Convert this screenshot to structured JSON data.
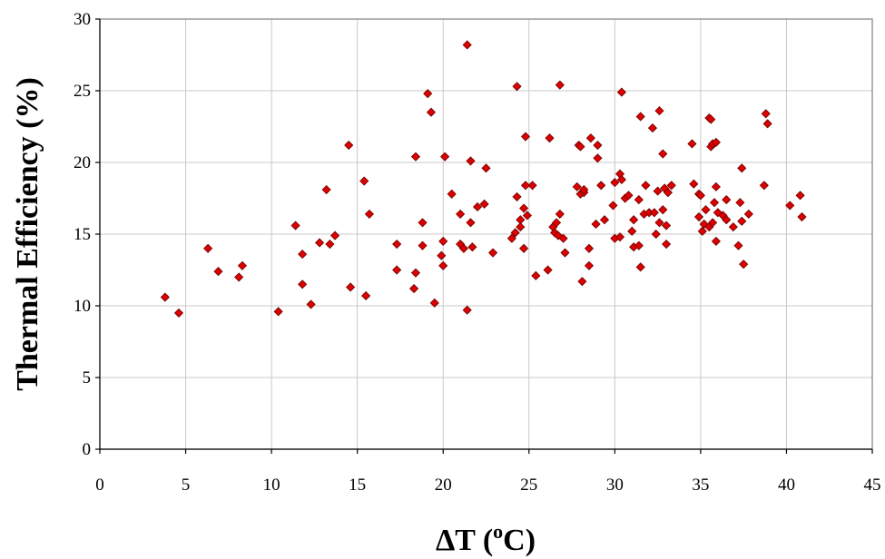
{
  "chart_data": {
    "type": "scatter",
    "xlabel": {
      "prefix": "ΔT (",
      "sup": "o",
      "suffix": "C)"
    },
    "ylabel": "Thermal Efficiency (%)",
    "xlim": [
      0,
      45
    ],
    "ylim": [
      0,
      30
    ],
    "xticks": [
      0,
      5,
      10,
      15,
      20,
      25,
      30,
      35,
      40,
      45
    ],
    "yticks": [
      0,
      5,
      10,
      15,
      20,
      25,
      30
    ],
    "grid": true,
    "marker": "diamond",
    "marker_color": "#dd0000",
    "points": [
      [
        3.8,
        10.6
      ],
      [
        4.6,
        9.5
      ],
      [
        6.3,
        14.0
      ],
      [
        6.9,
        12.4
      ],
      [
        8.1,
        12.0
      ],
      [
        8.3,
        12.8
      ],
      [
        10.4,
        9.6
      ],
      [
        11.4,
        15.6
      ],
      [
        11.8,
        13.6
      ],
      [
        11.8,
        11.5
      ],
      [
        12.3,
        10.1
      ],
      [
        12.8,
        14.4
      ],
      [
        13.2,
        18.1
      ],
      [
        13.4,
        14.3
      ],
      [
        13.7,
        14.9
      ],
      [
        14.5,
        21.2
      ],
      [
        14.6,
        11.3
      ],
      [
        15.4,
        18.7
      ],
      [
        15.5,
        10.7
      ],
      [
        15.7,
        16.4
      ],
      [
        17.3,
        14.3
      ],
      [
        17.3,
        12.5
      ],
      [
        18.3,
        11.2
      ],
      [
        18.4,
        12.3
      ],
      [
        18.4,
        20.4
      ],
      [
        18.8,
        15.8
      ],
      [
        18.8,
        14.2
      ],
      [
        19.1,
        24.8
      ],
      [
        19.3,
        23.5
      ],
      [
        19.5,
        10.2
      ],
      [
        19.9,
        13.5
      ],
      [
        20.0,
        12.8
      ],
      [
        20.0,
        14.5
      ],
      [
        20.1,
        20.4
      ],
      [
        20.5,
        17.8
      ],
      [
        21.0,
        16.4
      ],
      [
        21.0,
        14.3
      ],
      [
        21.2,
        14.0
      ],
      [
        21.4,
        9.7
      ],
      [
        21.4,
        28.2
      ],
      [
        21.6,
        15.8
      ],
      [
        21.6,
        20.1
      ],
      [
        21.7,
        14.1
      ],
      [
        22.0,
        16.9
      ],
      [
        22.4,
        17.1
      ],
      [
        22.5,
        19.6
      ],
      [
        22.9,
        13.7
      ],
      [
        24.0,
        14.7
      ],
      [
        24.2,
        15.1
      ],
      [
        24.3,
        25.3
      ],
      [
        24.3,
        17.6
      ],
      [
        24.5,
        15.5
      ],
      [
        24.5,
        16.0
      ],
      [
        24.7,
        14.0
      ],
      [
        24.7,
        16.8
      ],
      [
        24.8,
        18.4
      ],
      [
        24.8,
        21.8
      ],
      [
        24.9,
        16.3
      ],
      [
        25.2,
        18.4
      ],
      [
        25.4,
        12.1
      ],
      [
        26.1,
        12.5
      ],
      [
        26.2,
        21.7
      ],
      [
        26.4,
        15.5
      ],
      [
        26.5,
        15.1
      ],
      [
        26.6,
        15.8
      ],
      [
        26.7,
        14.9
      ],
      [
        26.8,
        25.4
      ],
      [
        26.8,
        16.4
      ],
      [
        27.0,
        14.7
      ],
      [
        27.1,
        13.7
      ],
      [
        27.8,
        18.3
      ],
      [
        27.9,
        21.2
      ],
      [
        28.0,
        21.1
      ],
      [
        28.0,
        17.8
      ],
      [
        28.1,
        11.7
      ],
      [
        28.2,
        17.9
      ],
      [
        28.2,
        18.1
      ],
      [
        28.5,
        12.8
      ],
      [
        28.5,
        14.0
      ],
      [
        28.6,
        21.7
      ],
      [
        28.9,
        15.7
      ],
      [
        29.0,
        20.3
      ],
      [
        29.0,
        21.2
      ],
      [
        29.2,
        18.4
      ],
      [
        29.4,
        16.0
      ],
      [
        29.9,
        17.0
      ],
      [
        30.0,
        14.7
      ],
      [
        30.0,
        18.6
      ],
      [
        30.3,
        14.8
      ],
      [
        30.3,
        19.2
      ],
      [
        30.4,
        24.9
      ],
      [
        30.4,
        18.8
      ],
      [
        30.6,
        17.5
      ],
      [
        30.8,
        17.7
      ],
      [
        31.0,
        15.2
      ],
      [
        31.1,
        14.1
      ],
      [
        31.1,
        16.0
      ],
      [
        31.4,
        17.4
      ],
      [
        31.4,
        14.2
      ],
      [
        31.5,
        23.2
      ],
      [
        31.5,
        12.7
      ],
      [
        31.7,
        16.4
      ],
      [
        31.8,
        18.4
      ],
      [
        32.0,
        16.5
      ],
      [
        32.2,
        22.4
      ],
      [
        32.3,
        16.5
      ],
      [
        32.4,
        15.0
      ],
      [
        32.5,
        18.0
      ],
      [
        32.6,
        23.6
      ],
      [
        32.6,
        15.8
      ],
      [
        32.8,
        20.6
      ],
      [
        32.8,
        16.7
      ],
      [
        32.9,
        18.2
      ],
      [
        33.0,
        14.3
      ],
      [
        33.0,
        15.6
      ],
      [
        33.1,
        17.9
      ],
      [
        33.3,
        18.4
      ],
      [
        34.5,
        21.3
      ],
      [
        34.6,
        18.5
      ],
      [
        34.9,
        17.8
      ],
      [
        34.9,
        16.2
      ],
      [
        35.0,
        17.7
      ],
      [
        35.1,
        15.2
      ],
      [
        35.2,
        15.7
      ],
      [
        35.3,
        16.7
      ],
      [
        35.5,
        23.1
      ],
      [
        35.5,
        15.5
      ],
      [
        35.6,
        23.0
      ],
      [
        35.6,
        21.1
      ],
      [
        35.7,
        21.3
      ],
      [
        35.7,
        15.8
      ],
      [
        35.8,
        17.2
      ],
      [
        35.9,
        14.5
      ],
      [
        35.9,
        21.4
      ],
      [
        35.9,
        18.3
      ],
      [
        36.0,
        16.5
      ],
      [
        36.3,
        16.3
      ],
      [
        36.5,
        17.4
      ],
      [
        36.5,
        16.0
      ],
      [
        36.9,
        15.5
      ],
      [
        37.2,
        14.2
      ],
      [
        37.3,
        17.2
      ],
      [
        37.4,
        15.9
      ],
      [
        37.4,
        19.6
      ],
      [
        37.5,
        12.9
      ],
      [
        37.8,
        16.4
      ],
      [
        38.7,
        18.4
      ],
      [
        38.8,
        23.4
      ],
      [
        38.9,
        22.7
      ],
      [
        40.2,
        17.0
      ],
      [
        40.8,
        17.7
      ],
      [
        40.9,
        16.2
      ]
    ]
  }
}
